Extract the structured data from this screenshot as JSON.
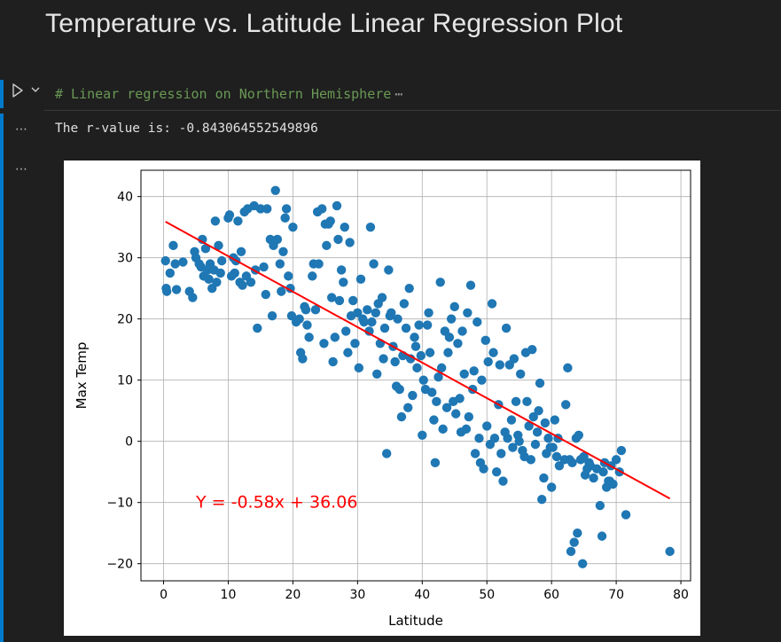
{
  "markdown": {
    "title": "Temperature vs. Latitude Linear Regression Plot"
  },
  "code_cell": {
    "comment": "# Linear regression on Northern Hemisphere",
    "ellipsis": "⋯",
    "run_icon": "play-icon",
    "collapse_icon": "chevron-down-icon"
  },
  "output": {
    "dots_1": "⋯",
    "dots_2": "⋯",
    "text": "The r-value is: -0.843064552549896"
  },
  "colors": {
    "accent": "#007acc",
    "scatter": "#1f77b4",
    "regression": "#ff0000",
    "comment_green": "#6a9955"
  },
  "chart_data": {
    "type": "scatter",
    "xlabel": "Latitude",
    "ylabel": "Max Temp",
    "xlim": [
      -3.5,
      81.5
    ],
    "ylim": [
      -22.8,
      44.3
    ],
    "xticks": [
      0,
      10,
      20,
      30,
      40,
      50,
      60,
      70,
      80
    ],
    "yticks": [
      -20,
      -10,
      0,
      10,
      20,
      30,
      40
    ],
    "grid": true,
    "annotation": "Y = -0.58x + 36.06",
    "regression": {
      "slope": -0.58,
      "intercept": 36.06,
      "x_range": [
        0.3,
        78.3
      ]
    },
    "points": [
      [
        0.3,
        29.5
      ],
      [
        0.4,
        25
      ],
      [
        0.5,
        24.5
      ],
      [
        1,
        27.5
      ],
      [
        1.5,
        32
      ],
      [
        1.8,
        29
      ],
      [
        2,
        24.8
      ],
      [
        3,
        29.3
      ],
      [
        4,
        24.5
      ],
      [
        4.5,
        23.5
      ],
      [
        4.8,
        31
      ],
      [
        5,
        30
      ],
      [
        5.5,
        29
      ],
      [
        5.8,
        28.5
      ],
      [
        6,
        33
      ],
      [
        6.2,
        27
      ],
      [
        6.5,
        31.5
      ],
      [
        6.8,
        28
      ],
      [
        7,
        26.5
      ],
      [
        7.2,
        29
      ],
      [
        7.5,
        25
      ],
      [
        7.8,
        28
      ],
      [
        8,
        36
      ],
      [
        8.2,
        26
      ],
      [
        8.5,
        32
      ],
      [
        8.8,
        27.5
      ],
      [
        9,
        29.5
      ],
      [
        10,
        36.5
      ],
      [
        10.2,
        37
      ],
      [
        10.5,
        27
      ],
      [
        10.8,
        30
      ],
      [
        11,
        27.5
      ],
      [
        11.2,
        29.5
      ],
      [
        11.5,
        36
      ],
      [
        11.8,
        26
      ],
      [
        12,
        31
      ],
      [
        12.2,
        25.5
      ],
      [
        12.5,
        37.5
      ],
      [
        12.8,
        27
      ],
      [
        13,
        38
      ],
      [
        13.5,
        26
      ],
      [
        14,
        38.5
      ],
      [
        14.2,
        28
      ],
      [
        14.5,
        18.5
      ],
      [
        15,
        38
      ],
      [
        15.5,
        28.5
      ],
      [
        15.8,
        24
      ],
      [
        16,
        38
      ],
      [
        16.5,
        33
      ],
      [
        16.8,
        20.5
      ],
      [
        17,
        32
      ],
      [
        17.3,
        41
      ],
      [
        17.6,
        33
      ],
      [
        18,
        29
      ],
      [
        18.2,
        24.5
      ],
      [
        18.5,
        31
      ],
      [
        18.8,
        36.5
      ],
      [
        19,
        38
      ],
      [
        19.3,
        27
      ],
      [
        19.6,
        25
      ],
      [
        19.8,
        20.5
      ],
      [
        20,
        35
      ],
      [
        20.5,
        19.5
      ],
      [
        21,
        20
      ],
      [
        21.2,
        14.5
      ],
      [
        21.5,
        13.5
      ],
      [
        21.8,
        22
      ],
      [
        22,
        21.5
      ],
      [
        22.2,
        19
      ],
      [
        22.5,
        17
      ],
      [
        23,
        27
      ],
      [
        23.2,
        29
      ],
      [
        23.5,
        21.5
      ],
      [
        23.8,
        37.5
      ],
      [
        24,
        29
      ],
      [
        24.5,
        38
      ],
      [
        24.8,
        16
      ],
      [
        25,
        35.5
      ],
      [
        25.2,
        32
      ],
      [
        25.5,
        35.5
      ],
      [
        25.8,
        36
      ],
      [
        26,
        23.5
      ],
      [
        26.2,
        13
      ],
      [
        26.5,
        17
      ],
      [
        26.8,
        38.5
      ],
      [
        27,
        33
      ],
      [
        27.2,
        23
      ],
      [
        27.5,
        28
      ],
      [
        27.8,
        26
      ],
      [
        28,
        35
      ],
      [
        28.2,
        18
      ],
      [
        28.5,
        14.5
      ],
      [
        28.8,
        32.5
      ],
      [
        29,
        20.5
      ],
      [
        29.3,
        23
      ],
      [
        29.6,
        16
      ],
      [
        30,
        21
      ],
      [
        30.2,
        12
      ],
      [
        30.5,
        26.5
      ],
      [
        30.8,
        20
      ],
      [
        31,
        19.5
      ],
      [
        31.5,
        21.5
      ],
      [
        31.8,
        18
      ],
      [
        32,
        35
      ],
      [
        32.2,
        19.5
      ],
      [
        32.5,
        29
      ],
      [
        32.8,
        21
      ],
      [
        33,
        11
      ],
      [
        33.2,
        22.5
      ],
      [
        33.5,
        16
      ],
      [
        33.8,
        23.5
      ],
      [
        34,
        13.5
      ],
      [
        34.2,
        18.5
      ],
      [
        34.5,
        -2
      ],
      [
        34.8,
        28
      ],
      [
        35,
        20.5
      ],
      [
        35.2,
        21
      ],
      [
        35.5,
        15.5
      ],
      [
        35.8,
        13
      ],
      [
        36,
        9
      ],
      [
        36.2,
        20
      ],
      [
        36.5,
        8.5
      ],
      [
        36.8,
        4
      ],
      [
        37,
        14
      ],
      [
        37.2,
        22.5
      ],
      [
        37.5,
        18.5
      ],
      [
        37.8,
        5.5
      ],
      [
        38,
        25
      ],
      [
        38.2,
        13.5
      ],
      [
        38.5,
        7.5
      ],
      [
        38.8,
        17
      ],
      [
        39,
        15.5
      ],
      [
        39.2,
        12
      ],
      [
        39.5,
        19
      ],
      [
        39.8,
        14
      ],
      [
        40,
        1
      ],
      [
        40.2,
        10
      ],
      [
        40.5,
        8.5
      ],
      [
        40.8,
        19
      ],
      [
        41,
        21
      ],
      [
        41.2,
        14.5
      ],
      [
        41.5,
        8
      ],
      [
        41.8,
        3.5
      ],
      [
        42,
        -3.5
      ],
      [
        42.2,
        6.5
      ],
      [
        42.5,
        10.5
      ],
      [
        42.8,
        26
      ],
      [
        43,
        12
      ],
      [
        43.2,
        2
      ],
      [
        43.5,
        18
      ],
      [
        43.8,
        5.5
      ],
      [
        44,
        14.5
      ],
      [
        44.2,
        17
      ],
      [
        44.5,
        20
      ],
      [
        44.8,
        6.5
      ],
      [
        45,
        22
      ],
      [
        45.2,
        4.5
      ],
      [
        45.5,
        16
      ],
      [
        45.8,
        7
      ],
      [
        46,
        1.5
      ],
      [
        46.2,
        18
      ],
      [
        46.5,
        11
      ],
      [
        46.8,
        2
      ],
      [
        47,
        21
      ],
      [
        47.2,
        4
      ],
      [
        47.5,
        25.5
      ],
      [
        47.8,
        8.5
      ],
      [
        48,
        11.5
      ],
      [
        48.2,
        -2
      ],
      [
        48.5,
        19.5
      ],
      [
        48.8,
        0.5
      ],
      [
        49,
        -3.5
      ],
      [
        49.2,
        10
      ],
      [
        49.5,
        -4.5
      ],
      [
        49.8,
        16.5
      ],
      [
        50,
        2.5
      ],
      [
        50.2,
        13
      ],
      [
        50.5,
        -0.5
      ],
      [
        50.8,
        22.5
      ],
      [
        51,
        14.5
      ],
      [
        51.2,
        0.5
      ],
      [
        51.5,
        -5
      ],
      [
        51.8,
        6
      ],
      [
        52,
        12.5
      ],
      [
        52.2,
        -2
      ],
      [
        52.5,
        -6.5
      ],
      [
        52.8,
        1.5
      ],
      [
        53,
        18.5
      ],
      [
        53.2,
        0.5
      ],
      [
        53.5,
        12.5
      ],
      [
        53.8,
        3.5
      ],
      [
        54,
        -1
      ],
      [
        54.2,
        13.5
      ],
      [
        54.5,
        6.5
      ],
      [
        54.8,
        1
      ],
      [
        55,
        0
      ],
      [
        55.2,
        11
      ],
      [
        55.5,
        -1.5
      ],
      [
        55.8,
        -2.5
      ],
      [
        56,
        14.5
      ],
      [
        56.2,
        6.5
      ],
      [
        56.5,
        2.5
      ],
      [
        56.8,
        -3
      ],
      [
        57,
        15
      ],
      [
        57.2,
        4
      ],
      [
        57.5,
        -0.5
      ],
      [
        57.8,
        1.5
      ],
      [
        58,
        5
      ],
      [
        58.2,
        9.5
      ],
      [
        58.5,
        -9.5
      ],
      [
        58.8,
        -6
      ],
      [
        59,
        3
      ],
      [
        59.2,
        -2
      ],
      [
        59.5,
        0.5
      ],
      [
        59.8,
        -1
      ],
      [
        60,
        -7.5
      ],
      [
        60.2,
        -1
      ],
      [
        60.5,
        3.5
      ],
      [
        60.8,
        -2.5
      ],
      [
        61,
        0.5
      ],
      [
        61.2,
        -4
      ],
      [
        62,
        -3
      ],
      [
        62.2,
        6
      ],
      [
        62.5,
        12
      ],
      [
        62.8,
        -3
      ],
      [
        63,
        -18
      ],
      [
        63.2,
        -3.5
      ],
      [
        63.5,
        -16.5
      ],
      [
        63.8,
        0.5
      ],
      [
        64,
        -15
      ],
      [
        64.2,
        1
      ],
      [
        64.5,
        -3
      ],
      [
        64.8,
        -20
      ],
      [
        65,
        -2.5
      ],
      [
        65.2,
        -5.5
      ],
      [
        65.5,
        -4.5
      ],
      [
        65.8,
        -3.5
      ],
      [
        66,
        -4
      ],
      [
        66.5,
        -6
      ],
      [
        67,
        -4.5
      ],
      [
        67.5,
        -10.5
      ],
      [
        67.8,
        -15.5
      ],
      [
        68,
        -5
      ],
      [
        68.2,
        -3.5
      ],
      [
        68.5,
        -7.5
      ],
      [
        68.8,
        -6.5
      ],
      [
        69,
        -6.5
      ],
      [
        69.2,
        -4
      ],
      [
        69.5,
        -7
      ],
      [
        70,
        -3
      ],
      [
        70.5,
        -5
      ],
      [
        70.8,
        -1.5
      ],
      [
        71.5,
        -12
      ],
      [
        78.3,
        -18
      ]
    ]
  }
}
